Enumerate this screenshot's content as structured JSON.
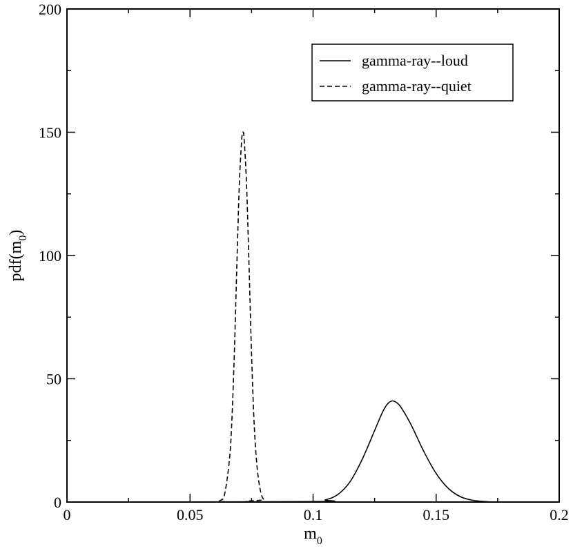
{
  "chart_data": {
    "type": "line",
    "title": "",
    "xlabel": {
      "base": "m",
      "sub": "0"
    },
    "ylabel": {
      "prefix": "pdf(m",
      "sub": "0",
      "suffix": ")"
    },
    "xlim": [
      0,
      0.2
    ],
    "ylim": [
      0,
      200
    ],
    "x_ticks": [
      0,
      0.05,
      0.1,
      0.15,
      0.2
    ],
    "x_tick_labels": [
      "0",
      "0.05",
      "0.1",
      "0.15",
      "0.2"
    ],
    "y_ticks": [
      0,
      50,
      100,
      150,
      200
    ],
    "y_tick_labels": [
      "0",
      "50",
      "100",
      "150",
      "200"
    ],
    "grid": false,
    "legend_position": "top-right",
    "series": [
      {
        "name": "gamma-ray--loud",
        "style": "solid",
        "x": [
          0.0,
          0.1,
          0.105,
          0.11,
          0.115,
          0.12,
          0.125,
          0.128,
          0.13,
          0.132,
          0.134,
          0.136,
          0.14,
          0.145,
          0.15,
          0.155,
          0.16,
          0.165,
          0.17,
          0.175,
          0.2
        ],
        "y": [
          0,
          0.2,
          0.9,
          3.0,
          8.2,
          17.4,
          29.0,
          36.0,
          39.5,
          41.0,
          40.3,
          38.0,
          31.0,
          20.5,
          11.6,
          5.5,
          2.1,
          0.7,
          0.2,
          0.05,
          0
        ]
      },
      {
        "name": "gamma-ray--quiet",
        "style": "dashed",
        "x": [
          0.0,
          0.06,
          0.062,
          0.064,
          0.066,
          0.067,
          0.068,
          0.069,
          0.07,
          0.071,
          0.0715,
          0.072,
          0.073,
          0.074,
          0.075,
          0.076,
          0.077,
          0.078,
          0.079,
          0.08,
          0.082,
          0.2
        ],
        "y": [
          0,
          0,
          0.5,
          3.0,
          17.0,
          33.0,
          60.0,
          95.0,
          128.0,
          147.0,
          150.0,
          147.0,
          128.0,
          95.0,
          60.0,
          33.0,
          17.0,
          8.0,
          3.0,
          1.0,
          0,
          0
        ]
      }
    ]
  }
}
